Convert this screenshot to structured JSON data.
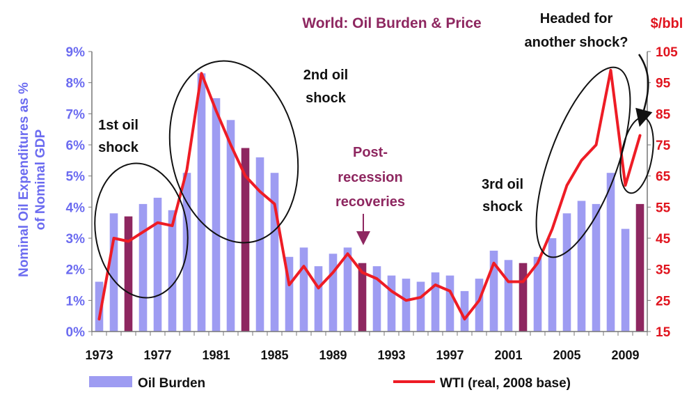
{
  "chart_data": {
    "type": "bar+line",
    "title": "World:  Oil Burden & Price",
    "ylabel_left": [
      "Nominal Oil Expenditures as %",
      "of Nominal GDP"
    ],
    "ylabel_right": "$/bbl",
    "ylim_left": [
      0,
      9
    ],
    "ylim_right": [
      15,
      105
    ],
    "yticks_left": [
      "0%",
      "1%",
      "2%",
      "3%",
      "4%",
      "5%",
      "6%",
      "7%",
      "8%",
      "9%"
    ],
    "yticks_right": [
      "15",
      "25",
      "35",
      "45",
      "55",
      "65",
      "75",
      "85",
      "95",
      "105"
    ],
    "xticks": [
      "1973",
      "1977",
      "1981",
      "1985",
      "1989",
      "1993",
      "1997",
      "2001",
      "2005",
      "2009"
    ],
    "years": [
      1973,
      1974,
      1975,
      1976,
      1977,
      1978,
      1979,
      1980,
      1981,
      1982,
      1983,
      1984,
      1985,
      1986,
      1987,
      1988,
      1989,
      1990,
      1991,
      1992,
      1993,
      1994,
      1995,
      1996,
      1997,
      1998,
      1999,
      2000,
      2001,
      2002,
      2003,
      2004,
      2005,
      2006,
      2007,
      2008,
      2009,
      2010
    ],
    "series": [
      {
        "name": "Oil Burden",
        "type": "bar",
        "color": "#9e9cf2",
        "recession_color": "#8e2760",
        "values": [
          1.6,
          3.8,
          3.7,
          4.1,
          4.3,
          3.9,
          5.1,
          8.3,
          7.5,
          6.8,
          5.9,
          5.6,
          5.1,
          2.4,
          2.7,
          2.1,
          2.5,
          2.7,
          2.2,
          2.1,
          1.8,
          1.7,
          1.6,
          1.9,
          1.8,
          1.3,
          1.7,
          2.6,
          2.3,
          2.2,
          2.4,
          3.0,
          3.8,
          4.2,
          4.1,
          5.1,
          3.3,
          4.1
        ],
        "recession_years": [
          1975,
          1983,
          1991,
          2002,
          2010
        ]
      },
      {
        "name": "WTI (real, 2008 base)",
        "type": "line",
        "color": "#ee1c25",
        "values": [
          19,
          45,
          44,
          47,
          50,
          49,
          67,
          98,
          86,
          75,
          65,
          60,
          56,
          30,
          36,
          29,
          34,
          40,
          34,
          32,
          28,
          25,
          26,
          30,
          28,
          19,
          25,
          37,
          31,
          31,
          37,
          48,
          62,
          70,
          75,
          99,
          62,
          78
        ]
      }
    ],
    "annotations": [
      {
        "lines": [
          "1st oil",
          "shock"
        ],
        "style": "black"
      },
      {
        "lines": [
          "2nd oil",
          "shock"
        ],
        "style": "black"
      },
      {
        "lines": [
          "Post-",
          "recession",
          "recoveries"
        ],
        "style": "purple"
      },
      {
        "lines": [
          "3rd oil",
          "shock"
        ],
        "style": "black"
      },
      {
        "lines": [
          "Headed for",
          "another shock?"
        ],
        "style": "black"
      }
    ],
    "legend": [
      "Oil Burden",
      "WTI (real, 2008 base)"
    ]
  }
}
